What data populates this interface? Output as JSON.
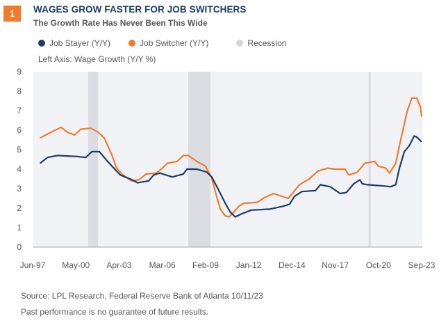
{
  "badge": "1",
  "colors": {
    "stayer": "#1b3c66",
    "switcher": "#f27a2c",
    "recession": "#dcdde3",
    "plot_bg": "#f1f2f5"
  },
  "chart_data": {
    "type": "line",
    "title": "WAGES GROW FASTER FOR JOB SWITCHERS",
    "subtitle": "The Growth Rate Has Never Been This Wide",
    "ylabel": "Left Axis: Wage Growth (Y/Y %)",
    "ylim": [
      0,
      9
    ],
    "yticks": [
      "0",
      "1",
      "2",
      "3",
      "4",
      "5",
      "6",
      "7",
      "8",
      "9"
    ],
    "xlim": [
      "1997-06",
      "2023-09"
    ],
    "xticks": [
      {
        "label": "Jun-97",
        "date": "1997-06"
      },
      {
        "label": "May-00",
        "date": "2000-05"
      },
      {
        "label": "Apr-03",
        "date": "2003-04"
      },
      {
        "label": "Mar-06",
        "date": "2006-03"
      },
      {
        "label": "Feb-09",
        "date": "2009-02"
      },
      {
        "label": "Jan-12",
        "date": "2012-01"
      },
      {
        "label": "Dec-14",
        "date": "2014-12"
      },
      {
        "label": "Nov-17",
        "date": "2017-11"
      },
      {
        "label": "Oct-20",
        "date": "2020-10"
      },
      {
        "label": "Sep-23",
        "date": "2023-09"
      }
    ],
    "grid": false,
    "legend": "top",
    "recessions": {
      "name": "Recession",
      "periods": [
        [
          "2001-03",
          "2001-11"
        ],
        [
          "2007-12",
          "2009-06"
        ],
        [
          "2020-02",
          "2020-04"
        ]
      ]
    },
    "series": [
      {
        "name": "Job Stayer (Y/Y)",
        "points": [
          [
            "1997-12",
            4.3
          ],
          [
            "1998-06",
            4.6
          ],
          [
            "1999-02",
            4.7
          ],
          [
            "2000-06",
            4.65
          ],
          [
            "2001-01",
            4.6
          ],
          [
            "2001-06",
            4.9
          ],
          [
            "2001-12",
            4.9
          ],
          [
            "2002-06",
            4.45
          ],
          [
            "2002-11",
            4.1
          ],
          [
            "2003-05",
            3.7
          ],
          [
            "2004-01",
            3.5
          ],
          [
            "2004-07",
            3.3
          ],
          [
            "2005-04",
            3.4
          ],
          [
            "2005-08",
            3.7
          ],
          [
            "2006-01",
            3.8
          ],
          [
            "2006-11",
            3.6
          ],
          [
            "2007-08",
            3.75
          ],
          [
            "2007-11",
            4.0
          ],
          [
            "2008-07",
            4.0
          ],
          [
            "2009-03",
            3.85
          ],
          [
            "2009-07",
            3.6
          ],
          [
            "2009-12",
            3.0
          ],
          [
            "2010-06",
            2.25
          ],
          [
            "2010-10",
            1.8
          ],
          [
            "2011-02",
            1.55
          ],
          [
            "2011-07",
            1.7
          ],
          [
            "2012-03",
            1.9
          ],
          [
            "2013-06",
            1.95
          ],
          [
            "2014-05",
            2.1
          ],
          [
            "2014-10",
            2.2
          ],
          [
            "2015-02",
            2.6
          ],
          [
            "2015-08",
            2.85
          ],
          [
            "2016-07",
            2.9
          ],
          [
            "2016-11",
            3.2
          ],
          [
            "2017-07",
            3.1
          ],
          [
            "2018-03",
            2.75
          ],
          [
            "2018-08",
            2.8
          ],
          [
            "2019-02",
            3.25
          ],
          [
            "2019-07",
            3.45
          ],
          [
            "2019-09",
            3.25
          ],
          [
            "2020-01",
            3.2
          ],
          [
            "2020-12",
            3.15
          ],
          [
            "2021-08",
            3.1
          ],
          [
            "2021-12",
            3.2
          ],
          [
            "2022-03",
            4.05
          ],
          [
            "2022-07",
            4.9
          ],
          [
            "2022-11",
            5.2
          ],
          [
            "2023-03",
            5.7
          ],
          [
            "2023-05",
            5.65
          ],
          [
            "2023-09",
            5.4
          ]
        ]
      },
      {
        "name": "Job Switcher (Y/Y)",
        "points": [
          [
            "1997-12",
            5.6
          ],
          [
            "1998-06",
            5.8
          ],
          [
            "1999-05",
            6.15
          ],
          [
            "1999-10",
            5.9
          ],
          [
            "2000-04",
            5.75
          ],
          [
            "2000-09",
            6.05
          ],
          [
            "2001-05",
            6.1
          ],
          [
            "2001-11",
            5.9
          ],
          [
            "2002-04",
            5.6
          ],
          [
            "2002-10",
            4.75
          ],
          [
            "2003-02",
            4.05
          ],
          [
            "2003-07",
            3.7
          ],
          [
            "2004-02",
            3.4
          ],
          [
            "2004-08",
            3.45
          ],
          [
            "2005-02",
            3.75
          ],
          [
            "2005-10",
            3.8
          ],
          [
            "2006-03",
            4.05
          ],
          [
            "2006-07",
            4.3
          ],
          [
            "2007-03",
            4.4
          ],
          [
            "2007-08",
            4.7
          ],
          [
            "2007-12",
            4.7
          ],
          [
            "2008-07",
            4.4
          ],
          [
            "2009-02",
            4.15
          ],
          [
            "2009-07",
            3.55
          ],
          [
            "2009-11",
            2.6
          ],
          [
            "2010-02",
            1.95
          ],
          [
            "2010-06",
            1.6
          ],
          [
            "2010-09",
            1.55
          ],
          [
            "2011-01",
            1.8
          ],
          [
            "2011-05",
            2.1
          ],
          [
            "2011-09",
            2.25
          ],
          [
            "2012-08",
            2.3
          ],
          [
            "2013-02",
            2.55
          ],
          [
            "2013-09",
            2.75
          ],
          [
            "2014-09",
            2.5
          ],
          [
            "2015-01",
            2.8
          ],
          [
            "2015-06",
            3.2
          ],
          [
            "2016-02",
            3.5
          ],
          [
            "2016-09",
            3.9
          ],
          [
            "2017-05",
            4.05
          ],
          [
            "2017-11",
            4.0
          ],
          [
            "2018-07",
            4.0
          ],
          [
            "2018-10",
            3.7
          ],
          [
            "2019-05",
            3.85
          ],
          [
            "2019-11",
            4.3
          ],
          [
            "2020-07",
            4.4
          ],
          [
            "2020-10",
            4.15
          ],
          [
            "2021-04",
            4.05
          ],
          [
            "2021-07",
            3.8
          ],
          [
            "2021-12",
            4.3
          ],
          [
            "2022-03",
            5.2
          ],
          [
            "2022-09",
            6.9
          ],
          [
            "2023-01",
            7.65
          ],
          [
            "2023-05",
            7.65
          ],
          [
            "2023-08",
            7.2
          ],
          [
            "2023-09",
            6.7
          ]
        ]
      }
    ]
  },
  "legend": {
    "stayer": "Job Stayer (Y/Y)",
    "switcher": "Job Switcher (Y/Y)",
    "recession": "Recession"
  },
  "footer": {
    "source": "Source: LPL Research, Federal Reserve Bank of Atlanta  10/11/23",
    "note": "Past performance is no guarantee of future results."
  }
}
